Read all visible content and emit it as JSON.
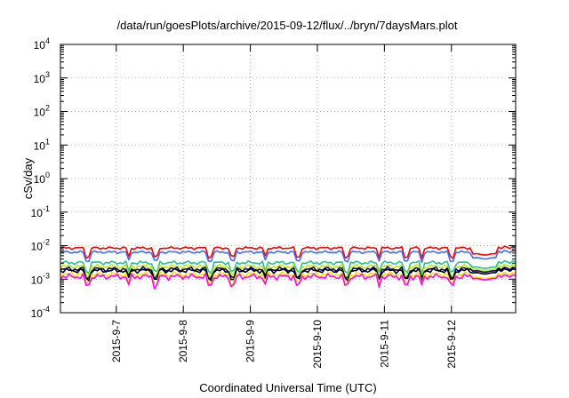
{
  "chart_data": {
    "type": "line",
    "title": "/data/run/goesPlots/archive/2015-09-12/flux/../bryn/7daysMars.plot",
    "xlabel": "Coordinated Universal Time (UTC)",
    "ylabel": "cSv/day",
    "yscale": "log",
    "ylim": [
      0.0001,
      10000
    ],
    "y_ticks": [
      {
        "base": "10",
        "exp": "4"
      },
      {
        "base": "10",
        "exp": "3"
      },
      {
        "base": "10",
        "exp": "2"
      },
      {
        "base": "10",
        "exp": "1"
      },
      {
        "base": "10",
        "exp": "0"
      },
      {
        "base": "10",
        "exp": "-1"
      },
      {
        "base": "10",
        "exp": "-2"
      },
      {
        "base": "10",
        "exp": "-3"
      },
      {
        "base": "10",
        "exp": "-4"
      }
    ],
    "xlim": [
      "2015-09-06 04:00",
      "2015-09-12 23:00"
    ],
    "x_ticks": [
      {
        "label": "2015-9-7",
        "value": "2015-09-07"
      },
      {
        "label": "2015-9-8",
        "value": "2015-09-08"
      },
      {
        "label": "2015-9-9",
        "value": "2015-09-09"
      },
      {
        "label": "2015-9-10",
        "value": "2015-09-10"
      },
      {
        "label": "2015-9-11",
        "value": "2015-09-11"
      },
      {
        "label": "2015-9-12",
        "value": "2015-09-12"
      }
    ],
    "grid": true,
    "legend": "none",
    "series": [
      {
        "color": "#ff0000",
        "base": 0.0085,
        "lateDrop": 0.0055,
        "noise": 0.1
      },
      {
        "color": "#3a6fff",
        "base": 0.0064,
        "lateDrop": 0.0042,
        "noise": 0.1
      },
      {
        "color": "#22c29a",
        "base": 0.0031,
        "lateDrop": 0.0022,
        "noise": 0.14
      },
      {
        "color": "#c8e600",
        "base": 0.0024,
        "lateDrop": 0.0019,
        "noise": 0.16
      },
      {
        "color": "#000080",
        "base": 0.002,
        "lateDrop": 0.0017,
        "noise": 0.18
      },
      {
        "color": "#000000",
        "base": 0.0018,
        "lateDrop": 0.0015,
        "noise": 0.18
      },
      {
        "color": "#ffdf00",
        "base": 0.0014,
        "lateDrop": 0.0011,
        "noise": 0.2
      },
      {
        "color": "#ff00ff",
        "base": 0.0012,
        "lateDrop": 0.001,
        "noise": 0.22
      }
    ]
  }
}
